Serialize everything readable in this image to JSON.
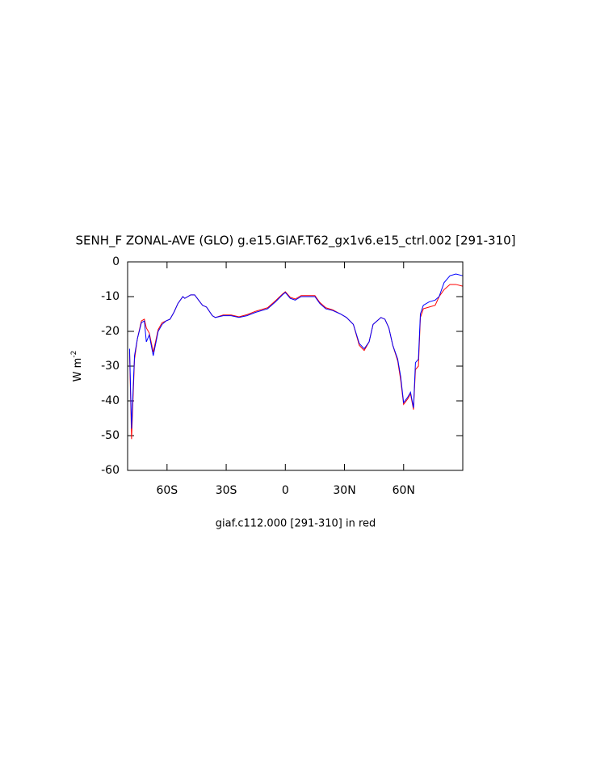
{
  "chart_data": {
    "type": "line",
    "title": "SENH_F ZONAL-AVE (GLO) g.e15.GIAF.T62_gx1v6.e15_ctrl.002 [291-310]",
    "subtitle": "giaf.c112.000 [291-310] in red",
    "y_label": "W m",
    "y_label_sup": "-2",
    "xlim": [
      -80,
      90
    ],
    "xticks": [
      {
        "value": -60,
        "label": "60S"
      },
      {
        "value": -30,
        "label": "30S"
      },
      0,
      {
        "value": 30,
        "label": "30N"
      },
      {
        "value": 60,
        "label": "60N"
      }
    ],
    "ylim": [
      -60,
      0
    ],
    "yticks": [
      0,
      -10,
      -20,
      -30,
      -40,
      -50,
      -60
    ],
    "x": [
      -79,
      -78,
      -76.5,
      -75,
      -73,
      -71.5,
      -70.5,
      -69,
      -67,
      -64.5,
      -62.5,
      -60.5,
      -58.5,
      -56.5,
      -54.5,
      -52,
      -51,
      -48,
      -46,
      -44,
      -42,
      -40,
      -37,
      -35.5,
      -31.5,
      -27.5,
      -23.5,
      -19.5,
      -15,
      -9,
      -5,
      -1.5,
      0,
      2.5,
      5,
      8,
      11.5,
      15,
      17.5,
      20.5,
      24,
      28,
      31,
      34.5,
      37.5,
      40,
      42.5,
      44.5,
      46.5,
      48.5,
      50.5,
      52.5,
      54.5,
      57,
      58.5,
      60,
      62,
      63.5,
      65,
      66,
      67.5,
      68.5,
      70,
      73,
      76,
      78,
      80.5,
      83.5,
      86.5,
      90
    ],
    "series": [
      {
        "color": "#ff0000",
        "values": [
          -26,
          -51,
          -28,
          -22,
          -17,
          -16.5,
          -19,
          -20.5,
          -26,
          -19.5,
          -17.5,
          -17,
          -16.5,
          -14.5,
          -12,
          -10,
          -10.5,
          -9.5,
          -9.5,
          -11,
          -12.5,
          -13,
          -15.5,
          -16,
          -15.3,
          -15.3,
          -15.8,
          -15.2,
          -14.2,
          -13.2,
          -11.2,
          -9.3,
          -8.6,
          -10.2,
          -10.7,
          -9.7,
          -9.7,
          -9.7,
          -11.7,
          -13.2,
          -13.8,
          -15,
          -16,
          -18,
          -24,
          -25.5,
          -23,
          -18,
          -17,
          -16,
          -16.5,
          -19,
          -24,
          -28.5,
          -34,
          -41,
          -39.5,
          -38,
          -42.5,
          -31,
          -30,
          -16,
          -13.5,
          -13,
          -12.5,
          -10,
          -8,
          -6.5,
          -6.5,
          -7
        ]
      },
      {
        "color": "#0000ff",
        "values": [
          -25,
          -48,
          -27,
          -22,
          -17.5,
          -17,
          -23,
          -21,
          -27,
          -20,
          -18,
          -17,
          -16.5,
          -14.5,
          -12,
          -10,
          -10.5,
          -9.5,
          -9.5,
          -11,
          -12.5,
          -13,
          -15.5,
          -16,
          -15.5,
          -15.5,
          -16,
          -15.5,
          -14.5,
          -13.5,
          -11.5,
          -9.5,
          -8.8,
          -10.5,
          -11,
          -10,
          -10,
          -10,
          -12,
          -13.5,
          -14,
          -15,
          -16,
          -18,
          -23.5,
          -25,
          -23,
          -18,
          -17,
          -16,
          -16.5,
          -19,
          -24,
          -28,
          -33,
          -40.5,
          -39,
          -37.5,
          -42,
          -29,
          -28,
          -15,
          -12.5,
          -11.5,
          -11,
          -10,
          -6,
          -4,
          -3.5,
          -4
        ]
      }
    ]
  }
}
